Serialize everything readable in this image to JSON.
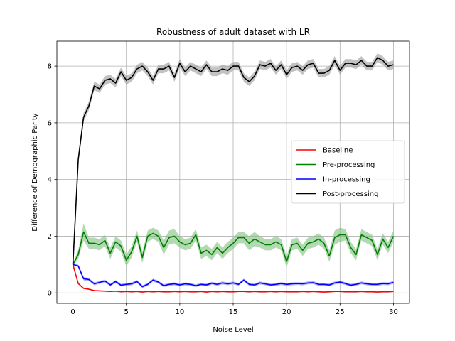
{
  "chart_data": {
    "type": "line",
    "title": "Robustness of adult dataset with LR",
    "xlabel": "Noise Level",
    "ylabel": "Difference of Demographic Parity",
    "xlim": [
      -1.5,
      31.5
    ],
    "ylim": [
      -0.37,
      8.88
    ],
    "xticks": [
      0,
      5,
      10,
      15,
      20,
      25,
      30
    ],
    "yticks": [
      0,
      2,
      4,
      6,
      8
    ],
    "grid": true,
    "legend_position": "center-right",
    "x": [
      0,
      0.5,
      1,
      1.5,
      2,
      2.5,
      3,
      3.5,
      4,
      4.5,
      5,
      5.5,
      6,
      6.5,
      7,
      7.5,
      8,
      8.5,
      9,
      9.5,
      10,
      10.5,
      11,
      11.5,
      12,
      12.5,
      13,
      13.5,
      14,
      14.5,
      15,
      15.5,
      16,
      16.5,
      17,
      17.5,
      18,
      18.5,
      19,
      19.5,
      20,
      20.5,
      21,
      21.5,
      22,
      22.5,
      23,
      23.5,
      24,
      24.5,
      25,
      25.5,
      26,
      26.5,
      27,
      27.5,
      28,
      28.5,
      29,
      29.5,
      30
    ],
    "series": [
      {
        "name": "Baseline",
        "color": "#ff0000",
        "band_color": "#ff9999",
        "values": [
          1.0,
          0.33,
          0.16,
          0.13,
          0.08,
          0.07,
          0.06,
          0.05,
          0.06,
          0.04,
          0.05,
          0.04,
          0.05,
          0.03,
          0.05,
          0.04,
          0.05,
          0.04,
          0.04,
          0.05,
          0.04,
          0.05,
          0.04,
          0.04,
          0.05,
          0.03,
          0.05,
          0.04,
          0.05,
          0.04,
          0.04,
          0.05,
          0.05,
          0.04,
          0.05,
          0.04,
          0.04,
          0.05,
          0.04,
          0.05,
          0.04,
          0.04,
          0.04,
          0.05,
          0.04,
          0.05,
          0.04,
          0.03,
          0.04,
          0.05,
          0.05,
          0.04,
          0.04,
          0.04,
          0.05,
          0.04,
          0.04,
          0.03,
          0.04,
          0.04,
          0.05
        ],
        "band": [
          0.01,
          0.04,
          0.03,
          0.02,
          0.02,
          0.02,
          0.02,
          0.02,
          0.02,
          0.02,
          0.02,
          0.02,
          0.02,
          0.02,
          0.02,
          0.02,
          0.02,
          0.02,
          0.02,
          0.02,
          0.02,
          0.02,
          0.02,
          0.02,
          0.02,
          0.02,
          0.02,
          0.02,
          0.02,
          0.02,
          0.02,
          0.02,
          0.02,
          0.02,
          0.02,
          0.02,
          0.02,
          0.02,
          0.02,
          0.02,
          0.02,
          0.02,
          0.02,
          0.02,
          0.02,
          0.02,
          0.02,
          0.02,
          0.02,
          0.02,
          0.02,
          0.02,
          0.02,
          0.02,
          0.02,
          0.02,
          0.02,
          0.02,
          0.02,
          0.02,
          0.02
        ]
      },
      {
        "name": "Pre-processing",
        "color": "#008000",
        "band_color": "#7fbf7f",
        "values": [
          1.0,
          1.35,
          2.15,
          1.75,
          1.75,
          1.7,
          1.85,
          1.4,
          1.8,
          1.65,
          1.15,
          1.45,
          2.0,
          1.25,
          2.0,
          2.1,
          2.0,
          1.6,
          1.95,
          2.0,
          1.8,
          1.7,
          1.75,
          2.05,
          1.4,
          1.5,
          1.35,
          1.6,
          1.4,
          1.6,
          1.75,
          1.95,
          1.95,
          1.75,
          1.9,
          1.8,
          1.7,
          1.7,
          1.8,
          1.7,
          1.1,
          1.7,
          1.75,
          1.5,
          1.75,
          1.8,
          1.9,
          1.75,
          1.3,
          1.95,
          2.05,
          2.05,
          1.6,
          1.35,
          2.05,
          1.95,
          1.85,
          1.35,
          1.9,
          1.6,
          2.0
        ],
        "band": [
          0.05,
          0.15,
          0.3,
          0.2,
          0.2,
          0.2,
          0.2,
          0.2,
          0.2,
          0.2,
          0.2,
          0.2,
          0.2,
          0.2,
          0.2,
          0.2,
          0.2,
          0.25,
          0.25,
          0.25,
          0.2,
          0.2,
          0.2,
          0.2,
          0.2,
          0.2,
          0.2,
          0.2,
          0.2,
          0.2,
          0.2,
          0.2,
          0.2,
          0.25,
          0.25,
          0.2,
          0.2,
          0.2,
          0.2,
          0.2,
          0.2,
          0.2,
          0.2,
          0.2,
          0.2,
          0.2,
          0.2,
          0.2,
          0.2,
          0.25,
          0.25,
          0.2,
          0.2,
          0.2,
          0.2,
          0.2,
          0.2,
          0.2,
          0.2,
          0.2,
          0.2
        ]
      },
      {
        "name": "In-processing",
        "color": "#0000ff",
        "band_color": "#8080ff",
        "values": [
          1.0,
          0.95,
          0.5,
          0.47,
          0.32,
          0.37,
          0.42,
          0.28,
          0.4,
          0.27,
          0.3,
          0.32,
          0.4,
          0.22,
          0.3,
          0.45,
          0.38,
          0.25,
          0.3,
          0.32,
          0.28,
          0.32,
          0.3,
          0.25,
          0.3,
          0.28,
          0.34,
          0.3,
          0.35,
          0.32,
          0.35,
          0.3,
          0.45,
          0.3,
          0.28,
          0.35,
          0.32,
          0.28,
          0.3,
          0.33,
          0.3,
          0.32,
          0.33,
          0.32,
          0.35,
          0.36,
          0.3,
          0.3,
          0.28,
          0.35,
          0.38,
          0.33,
          0.27,
          0.3,
          0.35,
          0.32,
          0.3,
          0.3,
          0.33,
          0.32,
          0.37
        ],
        "band": [
          0.02,
          0.05,
          0.06,
          0.05,
          0.05,
          0.05,
          0.05,
          0.05,
          0.05,
          0.05,
          0.05,
          0.05,
          0.05,
          0.05,
          0.05,
          0.05,
          0.05,
          0.05,
          0.05,
          0.05,
          0.05,
          0.05,
          0.05,
          0.05,
          0.05,
          0.05,
          0.05,
          0.05,
          0.05,
          0.05,
          0.05,
          0.05,
          0.05,
          0.05,
          0.05,
          0.05,
          0.05,
          0.05,
          0.05,
          0.05,
          0.05,
          0.05,
          0.05,
          0.05,
          0.05,
          0.05,
          0.05,
          0.05,
          0.05,
          0.05,
          0.05,
          0.05,
          0.05,
          0.05,
          0.05,
          0.05,
          0.05,
          0.05,
          0.05,
          0.05,
          0.05
        ]
      },
      {
        "name": "Post-processing",
        "color": "#000000",
        "band_color": "#999999",
        "values": [
          1.0,
          4.7,
          6.2,
          6.6,
          7.3,
          7.2,
          7.5,
          7.55,
          7.4,
          7.8,
          7.5,
          7.6,
          7.9,
          8.0,
          7.8,
          7.5,
          7.9,
          7.9,
          8.0,
          7.6,
          8.1,
          7.8,
          8.0,
          7.9,
          7.8,
          8.05,
          7.8,
          7.8,
          7.9,
          7.85,
          8.0,
          8.0,
          7.6,
          7.45,
          7.65,
          8.05,
          8.0,
          8.1,
          7.85,
          8.05,
          7.7,
          7.95,
          8.0,
          7.85,
          8.05,
          8.1,
          7.75,
          7.75,
          7.85,
          8.2,
          7.85,
          8.1,
          8.1,
          8.05,
          8.2,
          8.0,
          8.0,
          8.3,
          8.2,
          8.0,
          8.05
        ],
        "band": [
          0.02,
          0.1,
          0.15,
          0.15,
          0.15,
          0.15,
          0.15,
          0.15,
          0.15,
          0.15,
          0.15,
          0.15,
          0.15,
          0.15,
          0.15,
          0.15,
          0.15,
          0.15,
          0.15,
          0.15,
          0.15,
          0.15,
          0.15,
          0.15,
          0.15,
          0.15,
          0.15,
          0.15,
          0.15,
          0.15,
          0.15,
          0.15,
          0.15,
          0.15,
          0.15,
          0.15,
          0.15,
          0.15,
          0.15,
          0.15,
          0.15,
          0.15,
          0.15,
          0.15,
          0.15,
          0.15,
          0.15,
          0.15,
          0.15,
          0.15,
          0.15,
          0.15,
          0.15,
          0.15,
          0.15,
          0.15,
          0.15,
          0.15,
          0.15,
          0.15,
          0.15
        ]
      }
    ]
  }
}
